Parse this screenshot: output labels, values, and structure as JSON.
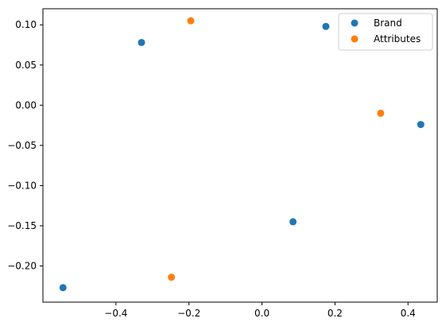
{
  "chart_data": {
    "type": "scatter",
    "title": "",
    "xlabel": "",
    "ylabel": "",
    "xlim": [
      -0.6,
      0.48
    ],
    "ylim": [
      -0.245,
      0.12
    ],
    "xticks": [
      -0.4,
      -0.2,
      0.0,
      0.2,
      0.4
    ],
    "xtick_labels": [
      "−0.4",
      "−0.2",
      "0.0",
      "0.2",
      "0.4"
    ],
    "yticks": [
      0.1,
      0.05,
      0.0,
      -0.05,
      -0.1,
      -0.15,
      -0.2
    ],
    "ytick_labels": [
      "0.10",
      "0.05",
      "0.00",
      "−0.05",
      "−0.10",
      "−0.15",
      "−0.20"
    ],
    "grid": false,
    "legend_position": "top-right",
    "series": [
      {
        "name": "Brand",
        "color": "#1f77b4",
        "points": [
          {
            "x": -0.33,
            "y": 0.078
          },
          {
            "x": 0.175,
            "y": 0.098
          },
          {
            "x": 0.435,
            "y": -0.024
          },
          {
            "x": 0.085,
            "y": -0.145
          },
          {
            "x": -0.545,
            "y": -0.227
          }
        ]
      },
      {
        "name": "Attributes",
        "color": "#ff7f0e",
        "points": [
          {
            "x": -0.195,
            "y": 0.105
          },
          {
            "x": 0.325,
            "y": -0.01
          },
          {
            "x": -0.248,
            "y": -0.214
          }
        ]
      }
    ]
  }
}
